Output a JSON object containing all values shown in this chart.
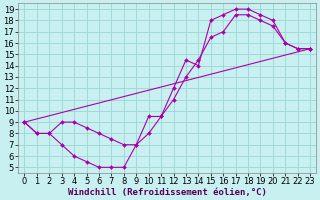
{
  "xlabel": "Windchill (Refroidissement éolien,°C)",
  "bg_color": "#c8f0f0",
  "grid_color": "#a0d8d8",
  "line_color": "#aa00aa",
  "marker_color": "#aa00aa",
  "xlim": [
    -0.5,
    23.5
  ],
  "ylim": [
    4.5,
    19.5
  ],
  "xticks": [
    0,
    1,
    2,
    3,
    4,
    5,
    6,
    7,
    8,
    9,
    10,
    11,
    12,
    13,
    14,
    15,
    16,
    17,
    18,
    19,
    20,
    21,
    22,
    23
  ],
  "yticks": [
    5,
    6,
    7,
    8,
    9,
    10,
    11,
    12,
    13,
    14,
    15,
    16,
    17,
    18,
    19
  ],
  "series1_x": [
    0,
    1,
    2,
    3,
    4,
    5,
    6,
    7,
    8,
    9,
    10,
    11,
    12,
    13,
    14,
    15,
    16,
    17,
    18,
    19,
    20,
    21,
    22,
    23
  ],
  "series1_y": [
    9,
    8,
    8,
    7,
    6,
    5.5,
    5,
    5,
    5,
    7,
    9.5,
    9.5,
    12,
    14.5,
    14,
    18,
    18.5,
    19,
    19,
    18.5,
    18,
    16,
    15.5,
    15.5
  ],
  "series2_x": [
    0,
    1,
    2,
    3,
    4,
    5,
    6,
    7,
    8,
    9,
    10,
    11,
    12,
    13,
    14,
    15,
    16,
    17,
    18,
    19,
    20,
    21,
    22,
    23
  ],
  "series2_y": [
    9,
    8,
    8,
    9,
    9,
    8.5,
    8,
    7.5,
    7,
    7,
    8,
    9.5,
    11,
    13,
    14.5,
    16.5,
    17,
    18.5,
    18.5,
    18,
    17.5,
    16,
    15.5,
    15.5
  ],
  "series3_x": [
    0,
    23
  ],
  "series3_y": [
    9,
    15.5
  ],
  "font_size_xlabel": 6.5,
  "font_size_ticks": 6
}
